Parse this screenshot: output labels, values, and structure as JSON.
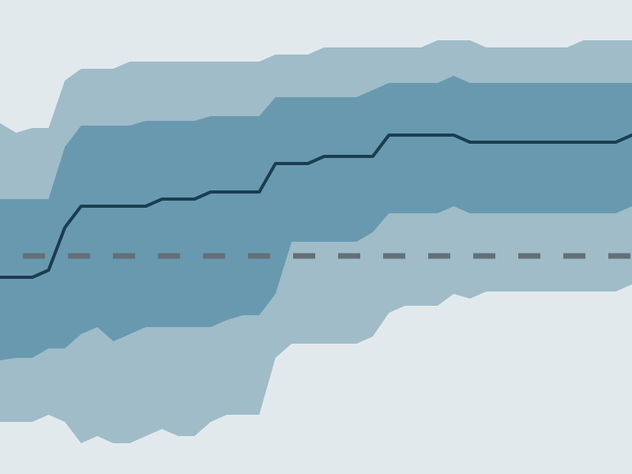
{
  "chart_data": {
    "type": "area",
    "x": [
      0,
      1,
      2,
      3,
      4,
      5,
      6,
      7,
      8,
      9,
      10,
      11,
      12,
      13,
      14,
      15,
      16,
      17,
      18,
      19,
      20,
      21,
      22,
      23,
      24,
      25,
      26,
      27,
      28,
      29,
      30,
      31,
      32,
      33,
      34,
      35,
      36,
      37,
      38,
      39
    ],
    "ylim": [
      0,
      1
    ],
    "grid": false,
    "reference_line": 0.46,
    "series": [
      {
        "role": "outer_band",
        "upper": [
          0.74,
          0.72,
          0.73,
          0.73,
          0.83,
          0.855,
          0.855,
          0.855,
          0.87,
          0.87,
          0.87,
          0.87,
          0.87,
          0.87,
          0.87,
          0.87,
          0.87,
          0.885,
          0.885,
          0.885,
          0.9,
          0.9,
          0.9,
          0.9,
          0.9,
          0.9,
          0.9,
          0.915,
          0.915,
          0.915,
          0.9,
          0.9,
          0.9,
          0.9,
          0.9,
          0.9,
          0.915,
          0.915,
          0.915,
          0.915
        ],
        "lower": [
          0.11,
          0.11,
          0.11,
          0.125,
          0.11,
          0.065,
          0.08,
          0.065,
          0.065,
          0.08,
          0.095,
          0.08,
          0.08,
          0.11,
          0.125,
          0.125,
          0.125,
          0.245,
          0.275,
          0.275,
          0.275,
          0.275,
          0.275,
          0.29,
          0.34,
          0.355,
          0.355,
          0.355,
          0.38,
          0.37,
          0.385,
          0.385,
          0.385,
          0.385,
          0.385,
          0.385,
          0.385,
          0.385,
          0.385,
          0.4
        ]
      },
      {
        "role": "inner_band",
        "upper": [
          0.58,
          0.58,
          0.58,
          0.58,
          0.69,
          0.735,
          0.735,
          0.735,
          0.735,
          0.745,
          0.745,
          0.745,
          0.745,
          0.755,
          0.755,
          0.755,
          0.755,
          0.795,
          0.795,
          0.795,
          0.795,
          0.795,
          0.795,
          0.81,
          0.825,
          0.825,
          0.825,
          0.825,
          0.84,
          0.825,
          0.825,
          0.825,
          0.825,
          0.825,
          0.825,
          0.825,
          0.825,
          0.825,
          0.825,
          0.825
        ],
        "lower": [
          0.24,
          0.245,
          0.245,
          0.265,
          0.265,
          0.295,
          0.31,
          0.28,
          0.295,
          0.31,
          0.31,
          0.31,
          0.31,
          0.31,
          0.325,
          0.335,
          0.335,
          0.38,
          0.49,
          0.49,
          0.49,
          0.49,
          0.49,
          0.51,
          0.55,
          0.55,
          0.55,
          0.55,
          0.565,
          0.55,
          0.55,
          0.55,
          0.55,
          0.55,
          0.55,
          0.55,
          0.55,
          0.55,
          0.55,
          0.565
        ]
      },
      {
        "role": "median_line",
        "values": [
          0.415,
          0.415,
          0.415,
          0.43,
          0.52,
          0.565,
          0.565,
          0.565,
          0.565,
          0.565,
          0.58,
          0.58,
          0.58,
          0.595,
          0.595,
          0.595,
          0.595,
          0.655,
          0.655,
          0.655,
          0.67,
          0.67,
          0.67,
          0.67,
          0.715,
          0.715,
          0.715,
          0.715,
          0.715,
          0.7,
          0.7,
          0.7,
          0.7,
          0.7,
          0.7,
          0.7,
          0.7,
          0.7,
          0.7,
          0.715
        ]
      }
    ],
    "colors": {
      "background": "#e2e9ed",
      "outer_band": "#9fbcc8",
      "inner_band": "#6899af",
      "median_line": "#1b3d4f",
      "reference_line": "#646f78"
    }
  }
}
